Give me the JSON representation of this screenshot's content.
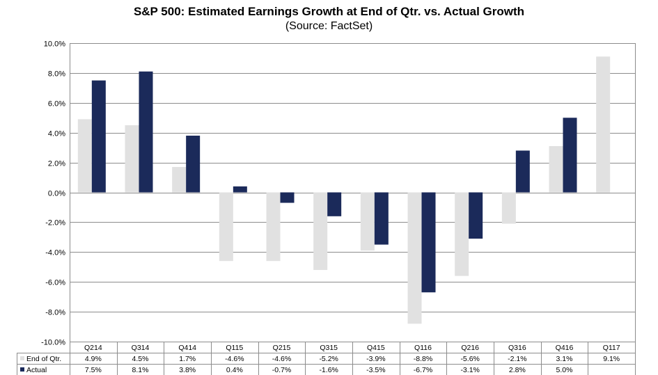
{
  "chart_data": {
    "type": "bar",
    "title": "S&P 500: Estimated Earnings Growth at End of Qtr. vs. Actual Growth",
    "subtitle": "(Source: FactSet)",
    "categories": [
      "Q214",
      "Q314",
      "Q414",
      "Q115",
      "Q215",
      "Q315",
      "Q415",
      "Q116",
      "Q216",
      "Q316",
      "Q416",
      "Q117"
    ],
    "series": [
      {
        "name": "End of Qtr.",
        "color": "#e1e1e1",
        "values": [
          4.9,
          4.5,
          1.7,
          -4.6,
          -4.6,
          -5.2,
          -3.9,
          -8.8,
          -5.6,
          -2.1,
          3.1,
          9.1
        ],
        "labels": [
          "4.9%",
          "4.5%",
          "1.7%",
          "-4.6%",
          "-4.6%",
          "-5.2%",
          "-3.9%",
          "-8.8%",
          "-5.6%",
          "-2.1%",
          "3.1%",
          "9.1%"
        ]
      },
      {
        "name": "Actual",
        "color": "#1b2a5a",
        "values": [
          7.5,
          8.1,
          3.8,
          0.4,
          -0.7,
          -1.6,
          -3.5,
          -6.7,
          -3.1,
          2.8,
          5.0,
          null
        ],
        "labels": [
          "7.5%",
          "8.1%",
          "3.8%",
          "0.4%",
          "-0.7%",
          "-1.6%",
          "-3.5%",
          "-6.7%",
          "-3.1%",
          "2.8%",
          "5.0%",
          ""
        ]
      }
    ],
    "ylim": [
      -10,
      10
    ],
    "yticks": [
      10,
      8,
      6,
      4,
      2,
      0,
      -2,
      -4,
      -6,
      -8,
      -10
    ],
    "ytick_labels": [
      "10.0%",
      "8.0%",
      "6.0%",
      "4.0%",
      "2.0%",
      "0.0%",
      "-2.0%",
      "-4.0%",
      "-6.0%",
      "-8.0%",
      "-10.0%"
    ],
    "grid": true,
    "legend": "data-table"
  }
}
